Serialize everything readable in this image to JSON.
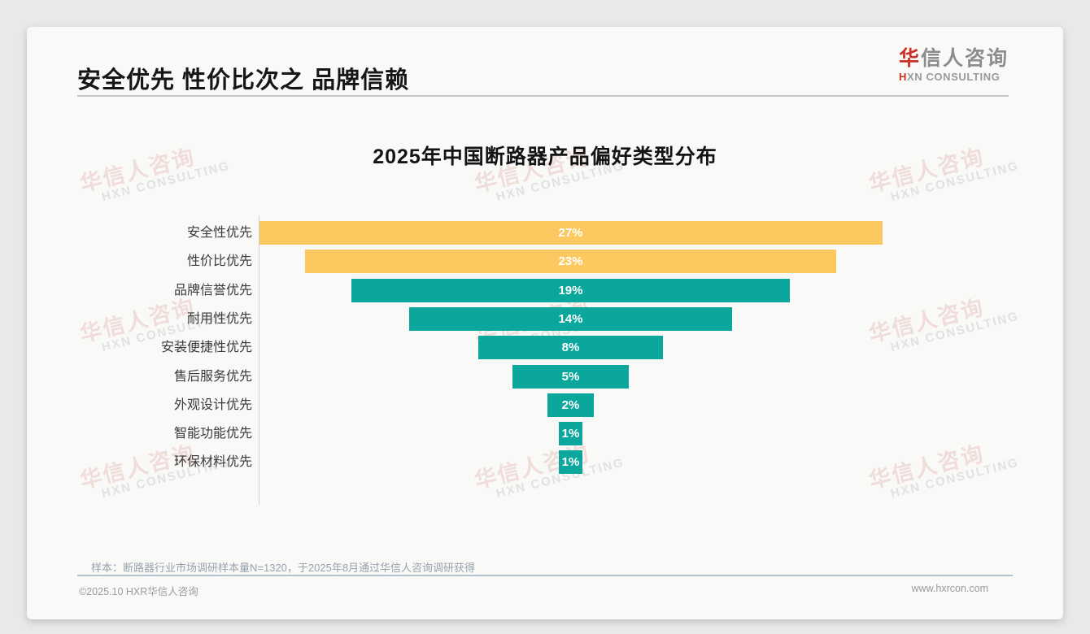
{
  "page": {
    "header": {
      "title": "安全优先 性价比次之 品牌信赖"
    },
    "logo": {
      "cn_first": "华",
      "cn_rest": "信人咨询",
      "en_first": "H",
      "en_rest": "XN CONSULTING"
    },
    "watermark": {
      "cn": "华信人咨询",
      "en": "HXN CONSULTING"
    },
    "sample_note": "样本：断路器行业市场调研样本量N=1320，于2025年8月通过华信人咨询调研获得",
    "footer": {
      "left": "©2025.10 HXR华信人咨询",
      "right": "www.hxrcon.com"
    }
  },
  "chart_data": {
    "type": "bar",
    "subtype": "horizontal-centered-funnel",
    "title": "2025年中国断路器产品偏好类型分布",
    "categories": [
      "安全性优先",
      "性价比优先",
      "品牌信誉优先",
      "耐用性优先",
      "安装便捷性优先",
      "售后服务优先",
      "外观设计优先",
      "智能功能优先",
      "环保材料优先"
    ],
    "values": [
      27,
      23,
      19,
      14,
      8,
      5,
      2,
      1,
      1
    ],
    "value_labels": [
      "27%",
      "23%",
      "19%",
      "14%",
      "8%",
      "5%",
      "2%",
      "1%",
      "1%"
    ],
    "unit": "%",
    "max_value": 27,
    "highlight_top_n": 2,
    "colors": {
      "highlight": "#FBC95F",
      "primary": "#0CA79C",
      "value_text": "#ffffff"
    },
    "legend": "none",
    "grid": "off",
    "bars_centered": true
  }
}
